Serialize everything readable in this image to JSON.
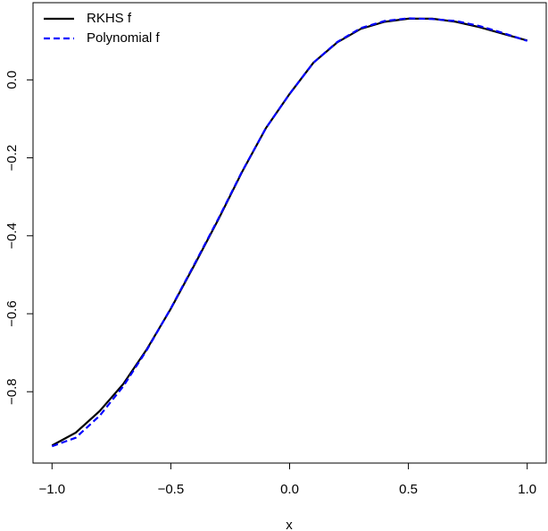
{
  "chart_data": {
    "type": "line",
    "x_label": "x",
    "x": [
      -1.0,
      -0.9,
      -0.8,
      -0.7,
      -0.6,
      -0.5,
      -0.4,
      -0.3,
      -0.2,
      -0.1,
      0.0,
      0.1,
      0.2,
      0.3,
      0.4,
      0.5,
      0.6,
      0.7,
      0.8,
      0.9,
      1.0
    ],
    "series": [
      {
        "name": "RKHS f",
        "color": "#000000",
        "dash": false,
        "values": [
          -0.938,
          -0.905,
          -0.85,
          -0.78,
          -0.69,
          -0.587,
          -0.474,
          -0.358,
          -0.236,
          -0.124,
          -0.036,
          0.044,
          0.096,
          0.131,
          0.149,
          0.157,
          0.157,
          0.149,
          0.135,
          0.118,
          0.101
        ]
      },
      {
        "name": "Polynomial f",
        "color": "#0000ff",
        "dash": true,
        "values": [
          -0.94,
          -0.918,
          -0.862,
          -0.786,
          -0.692,
          -0.586,
          -0.472,
          -0.356,
          -0.235,
          -0.124,
          -0.036,
          0.044,
          0.097,
          0.133,
          0.151,
          0.158,
          0.156,
          0.151,
          0.138,
          0.12,
          0.1
        ]
      }
    ],
    "xlim": [
      -1.08,
      1.08
    ],
    "ylim": [
      -0.983,
      0.198
    ],
    "xticks": [
      {
        "value": -1.0,
        "label": "−1.0"
      },
      {
        "value": -0.5,
        "label": "−0.5"
      },
      {
        "value": 0.0,
        "label": "0.0"
      },
      {
        "value": 0.5,
        "label": "0.5"
      },
      {
        "value": 1.0,
        "label": "1.0"
      }
    ],
    "yticks": [
      {
        "value": -0.8,
        "label": "−0.8"
      },
      {
        "value": -0.6,
        "label": "−0.6"
      },
      {
        "value": -0.4,
        "label": "−0.4"
      },
      {
        "value": -0.2,
        "label": "−0.2"
      },
      {
        "value": 0.0,
        "label": "0.0"
      }
    ],
    "legend": "top-left"
  }
}
